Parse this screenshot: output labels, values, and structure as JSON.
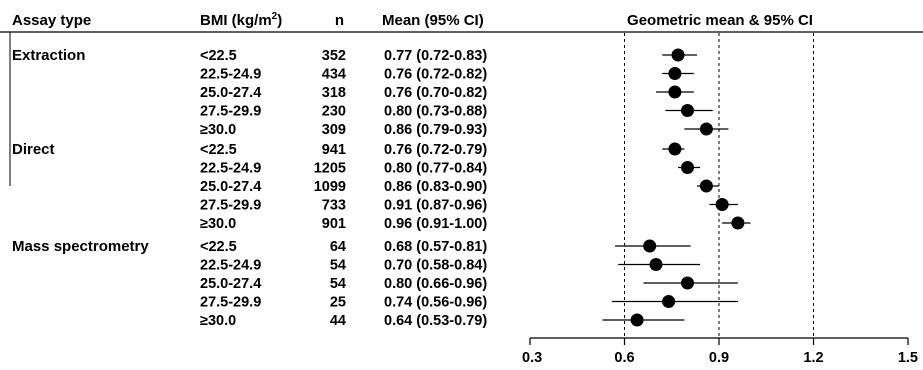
{
  "headers": {
    "assay_type": "Assay type",
    "bmi_prefix": "BMI (kg/m",
    "bmi_sup": "2",
    "bmi_suffix": ")",
    "n": "n",
    "mean_ci": "Mean (95% CI)",
    "plot": "Geometric mean & 95% CI"
  },
  "chart_data": {
    "type": "forest",
    "title": "Geometric mean & 95% CI",
    "xlim": [
      0.3,
      1.5
    ],
    "x_ticks": [
      0.3,
      0.6,
      0.9,
      1.2,
      1.5
    ],
    "x_tick_labels": [
      "0.3",
      "0.6",
      "0.9",
      "1.2",
      "1.5"
    ],
    "reference_lines": [
      0.6,
      0.9,
      1.2
    ],
    "groups": [
      {
        "name": "Extraction",
        "rows": [
          {
            "bmi": "<22.5",
            "n": "352",
            "label": "0.77 (0.72-0.83)",
            "mean": 0.77,
            "lower": 0.72,
            "upper": 0.83
          },
          {
            "bmi": "22.5-24.9",
            "n": "434",
            "label": "0.76 (0.72-0.82)",
            "mean": 0.76,
            "lower": 0.72,
            "upper": 0.82
          },
          {
            "bmi": "25.0-27.4",
            "n": "318",
            "label": "0.76 (0.70-0.82)",
            "mean": 0.76,
            "lower": 0.7,
            "upper": 0.82
          },
          {
            "bmi": "27.5-29.9",
            "n": "230",
            "label": "0.80 (0.73-0.88)",
            "mean": 0.8,
            "lower": 0.73,
            "upper": 0.88
          },
          {
            "bmi": "≥30.0",
            "n": "309",
            "label": "0.86 (0.79-0.93)",
            "mean": 0.86,
            "lower": 0.79,
            "upper": 0.93
          }
        ]
      },
      {
        "name": "Direct",
        "rows": [
          {
            "bmi": "<22.5",
            "n": "941",
            "label": "0.76 (0.72-0.79)",
            "mean": 0.76,
            "lower": 0.72,
            "upper": 0.79
          },
          {
            "bmi": "22.5-24.9",
            "n": "1205",
            "label": "0.80 (0.77-0.84)",
            "mean": 0.8,
            "lower": 0.77,
            "upper": 0.84
          },
          {
            "bmi": "25.0-27.4",
            "n": "1099",
            "label": "0.86 (0.83-0.90)",
            "mean": 0.86,
            "lower": 0.83,
            "upper": 0.9
          },
          {
            "bmi": "27.5-29.9",
            "n": "733",
            "label": "0.91 (0.87-0.96)",
            "mean": 0.91,
            "lower": 0.87,
            "upper": 0.96
          },
          {
            "bmi": "≥30.0",
            "n": "901",
            "label": "0.96 (0.91-1.00)",
            "mean": 0.96,
            "lower": 0.91,
            "upper": 1.0
          }
        ]
      },
      {
        "name": "Mass spectrometry",
        "rows": [
          {
            "bmi": "<22.5",
            "n": "64",
            "label": "0.68 (0.57-0.81)",
            "mean": 0.68,
            "lower": 0.57,
            "upper": 0.81
          },
          {
            "bmi": "22.5-24.9",
            "n": "54",
            "label": "0.70 (0.58-0.84)",
            "mean": 0.7,
            "lower": 0.58,
            "upper": 0.84
          },
          {
            "bmi": "25.0-27.4",
            "n": "54",
            "label": "0.80 (0.66-0.96)",
            "mean": 0.8,
            "lower": 0.66,
            "upper": 0.96
          },
          {
            "bmi": "27.5-29.9",
            "n": "25",
            "label": "0.74 (0.56-0.96)",
            "mean": 0.74,
            "lower": 0.56,
            "upper": 0.96
          },
          {
            "bmi": "≥30.0",
            "n": "44",
            "label": "0.64 (0.53-0.79)",
            "mean": 0.64,
            "lower": 0.53,
            "upper": 0.79
          }
        ]
      }
    ]
  }
}
